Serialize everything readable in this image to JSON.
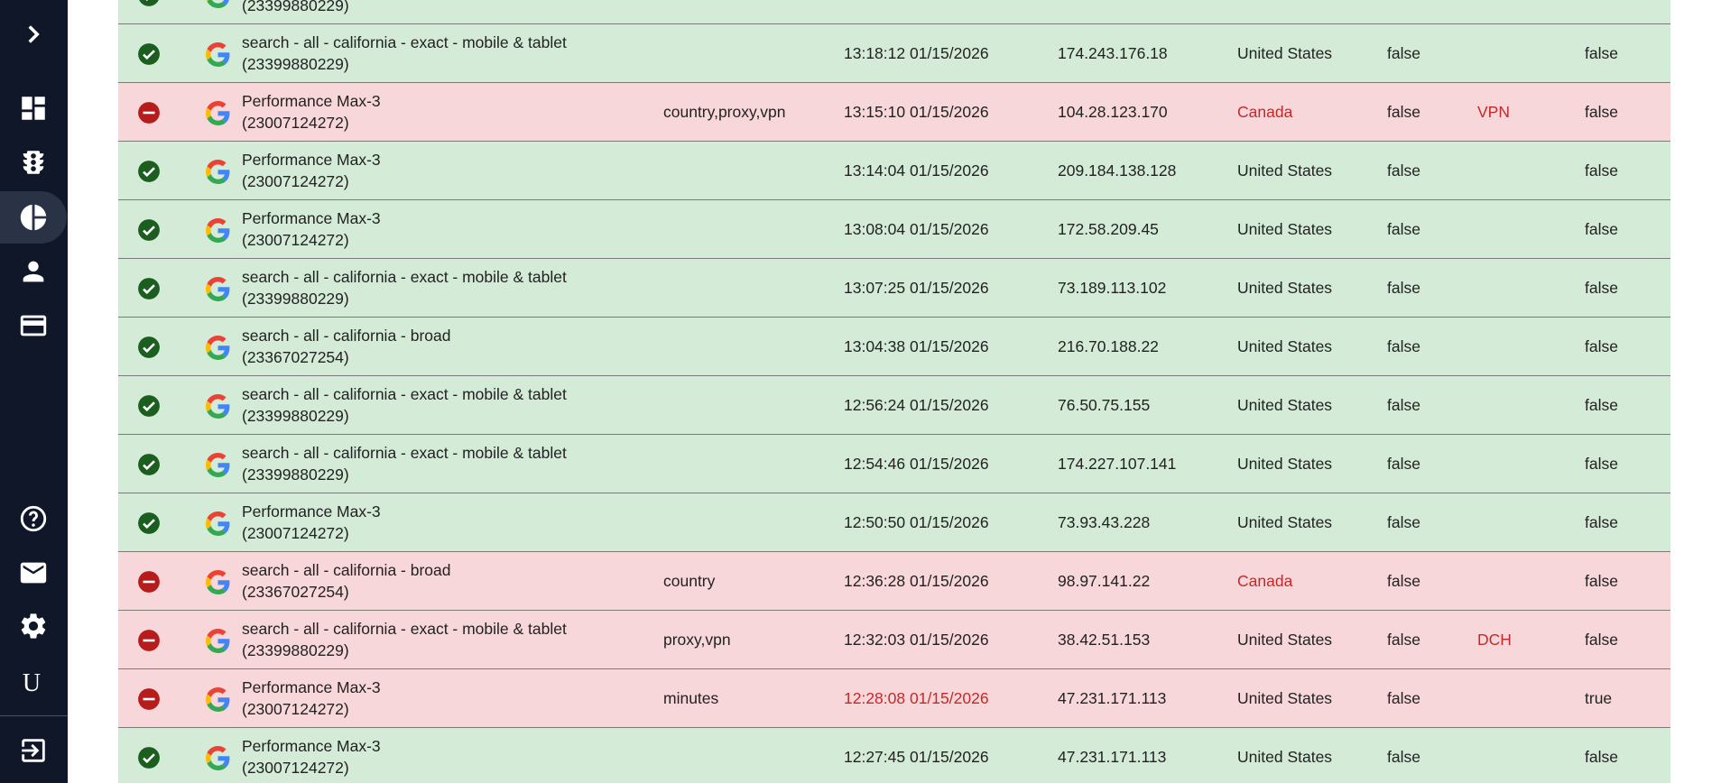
{
  "sidebar": {
    "logo": "U"
  },
  "top_row": {
    "campaign_id": "(23399880229)"
  },
  "rows": [
    {
      "campaign": "search - all - california - exact - mobile & tablet",
      "campaign_id": "(23399880229)",
      "time": "13:18:12 01/15/2026",
      "ip": "174.243.176.18",
      "country": "United States",
      "col_a": "false",
      "col_b": "false"
    },
    {
      "campaign": "Performance Max-3",
      "campaign_id": "(23007124272)",
      "reasons": "country,proxy,vpn",
      "time": "13:15:10 01/15/2026",
      "ip": "104.28.123.170",
      "country": "Canada",
      "col_a": "false",
      "flag": "VPN",
      "col_b": "false"
    },
    {
      "campaign": "Performance Max-3",
      "campaign_id": "(23007124272)",
      "time": "13:14:04 01/15/2026",
      "ip": "209.184.138.128",
      "country": "United States",
      "col_a": "false",
      "col_b": "false"
    },
    {
      "campaign": "Performance Max-3",
      "campaign_id": "(23007124272)",
      "time": "13:08:04 01/15/2026",
      "ip": "172.58.209.45",
      "country": "United States",
      "col_a": "false",
      "col_b": "false"
    },
    {
      "campaign": "search - all - california - exact - mobile & tablet",
      "campaign_id": "(23399880229)",
      "time": "13:07:25 01/15/2026",
      "ip": "73.189.113.102",
      "country": "United States",
      "col_a": "false",
      "col_b": "false"
    },
    {
      "campaign": "search - all - california - broad",
      "campaign_id": "(23367027254)",
      "time": "13:04:38 01/15/2026",
      "ip": "216.70.188.22",
      "country": "United States",
      "col_a": "false",
      "col_b": "false"
    },
    {
      "campaign": "search - all - california - exact - mobile & tablet",
      "campaign_id": "(23399880229)",
      "time": "12:56:24 01/15/2026",
      "ip": "76.50.75.155",
      "country": "United States",
      "col_a": "false",
      "col_b": "false"
    },
    {
      "campaign": "search - all - california - exact - mobile & tablet",
      "campaign_id": "(23399880229)",
      "time": "12:54:46 01/15/2026",
      "ip": "174.227.107.141",
      "country": "United States",
      "col_a": "false",
      "col_b": "false"
    },
    {
      "campaign": "Performance Max-3",
      "campaign_id": "(23007124272)",
      "time": "12:50:50 01/15/2026",
      "ip": "73.93.43.228",
      "country": "United States",
      "col_a": "false",
      "col_b": "false"
    },
    {
      "campaign": "search - all - california - broad",
      "campaign_id": "(23367027254)",
      "reasons": "country",
      "time": "12:36:28 01/15/2026",
      "ip": "98.97.141.22",
      "country": "Canada",
      "col_a": "false",
      "col_b": "false"
    },
    {
      "campaign": "search - all - california - exact - mobile & tablet",
      "campaign_id": "(23399880229)",
      "reasons": "proxy,vpn",
      "time": "12:32:03 01/15/2026",
      "ip": "38.42.51.153",
      "country": "United States",
      "col_a": "false",
      "flag": "DCH",
      "col_b": "false"
    },
    {
      "campaign": "Performance Max-3",
      "campaign_id": "(23007124272)",
      "reasons": "minutes",
      "time": "12:28:08 01/15/2026",
      "ip": "47.231.171.113",
      "country": "United States",
      "col_a": "false",
      "col_b": "true"
    },
    {
      "campaign": "Performance Max-3",
      "campaign_id": "(23007124272)",
      "time": "12:27:45 01/15/2026",
      "ip": "47.231.171.113",
      "country": "United States",
      "col_a": "false",
      "col_b": "false"
    }
  ]
}
